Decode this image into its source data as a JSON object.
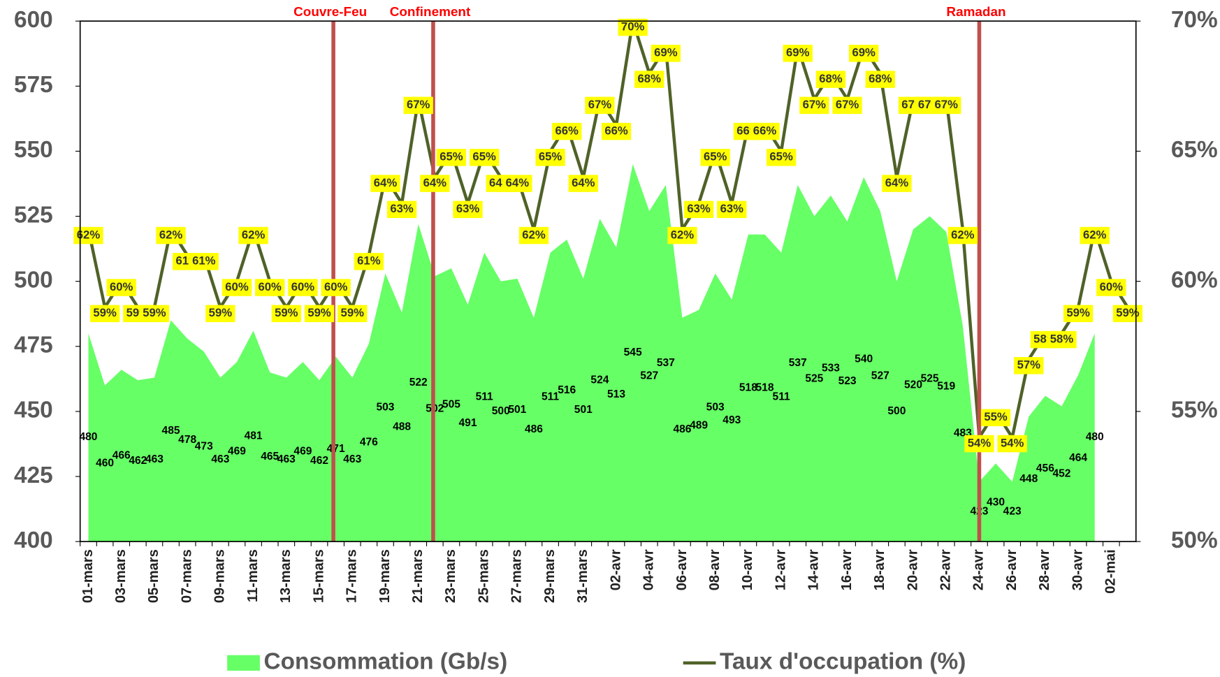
{
  "chart_data": {
    "type": "combo",
    "categories": [
      "01-mars",
      null,
      "03-mars",
      null,
      "05-mars",
      null,
      "07-mars",
      null,
      "09-mars",
      null,
      "11-mars",
      null,
      "13-mars",
      null,
      "15-mars",
      null,
      "17-mars",
      null,
      "19-mars",
      null,
      "21-mars",
      null,
      "23-mars",
      null,
      "25-mars",
      null,
      "27-mars",
      null,
      "29-mars",
      null,
      "31-mars",
      null,
      "02-avr",
      null,
      "04-avr",
      null,
      "06-avr",
      null,
      "08-avr",
      null,
      "10-avr",
      null,
      "12-avr",
      null,
      "14-avr",
      null,
      "16-avr",
      null,
      "18-avr",
      null,
      "20-avr",
      null,
      "22-avr",
      null,
      "24-avr",
      null,
      "26-avr",
      null,
      "28-avr",
      null,
      "30-avr",
      null,
      "02-mai",
      null
    ],
    "series": [
      {
        "name": "Consommation (Gb/s)",
        "type": "area",
        "color": "#66ff66",
        "values": [
          480,
          460,
          466,
          462,
          463,
          485,
          478,
          473,
          463,
          469,
          481,
          465,
          463,
          469,
          462,
          471,
          463,
          476,
          503,
          488,
          522,
          502,
          505,
          491,
          511,
          500,
          501,
          486,
          511,
          516,
          501,
          524,
          513,
          545,
          527,
          537,
          486,
          489,
          503,
          493,
          518,
          518,
          511,
          537,
          525,
          533,
          523,
          540,
          527,
          500,
          520,
          525,
          519,
          483,
          423,
          430,
          423,
          448,
          456,
          452,
          464,
          480,
          null,
          null
        ]
      },
      {
        "name": "Taux d'occupation (%)",
        "type": "line",
        "axis": "y2",
        "color": "#4f6228",
        "values": [
          62,
          59,
          60,
          59,
          59,
          62,
          61,
          61,
          59,
          60,
          62,
          60,
          59,
          60,
          59,
          60,
          59,
          61,
          64,
          63,
          67,
          64,
          65,
          63,
          65,
          64,
          64,
          62,
          65,
          66,
          64,
          67,
          66,
          70,
          68,
          69,
          62,
          63,
          65,
          63,
          66,
          66,
          65,
          69,
          67,
          68,
          67,
          69,
          68,
          64,
          67,
          67,
          67,
          62,
          54,
          55,
          54,
          57,
          58,
          58,
          59,
          62,
          60,
          59
        ],
        "value_labels": [
          "62%",
          "59%",
          "60%",
          "59%",
          "59%",
          "62%",
          "61%",
          "61%",
          "59%",
          "60%",
          "62%",
          "60%",
          "59%",
          "60%",
          "59%",
          "60%",
          "59%",
          "61%",
          "64%",
          "63%",
          "67%",
          "64%",
          "65%",
          "63%",
          "65%",
          "64%",
          "64%",
          "62%",
          "65%",
          "66%",
          "64%",
          "67%",
          "66%",
          "70%",
          "68%",
          "69%",
          "62%",
          "63%",
          "65%",
          "63%",
          "66%",
          "66%",
          "65%",
          "69%",
          "67%",
          "68%",
          "67%",
          "69%",
          "68%",
          "64%",
          "67%",
          "67%",
          "67%",
          "62%",
          "54%",
          "55%",
          "54%",
          "57%",
          "58%",
          "58%",
          "59%",
          "62%",
          "60%",
          "59%"
        ]
      }
    ],
    "ylim": [
      400,
      600
    ],
    "yticks": [
      400,
      425,
      450,
      475,
      500,
      525,
      550,
      575,
      600
    ],
    "y2lim": [
      50,
      70
    ],
    "y2ticks": [
      {
        "value": 50,
        "label": "50%"
      },
      {
        "value": 55,
        "label": "55%"
      },
      {
        "value": 60,
        "label": "60%"
      },
      {
        "value": 65,
        "label": "65%"
      },
      {
        "value": 70,
        "label": "70%"
      }
    ],
    "annotations": [
      {
        "text": "Couvre-Feu",
        "index": 14.85,
        "color": "#c0504d"
      },
      {
        "text": "Confinement",
        "index": 20.9,
        "color": "#c0504d"
      },
      {
        "text": "Ramadan",
        "index": 54,
        "color": "#c0504d"
      }
    ],
    "grid": false,
    "legend": "bottom"
  }
}
